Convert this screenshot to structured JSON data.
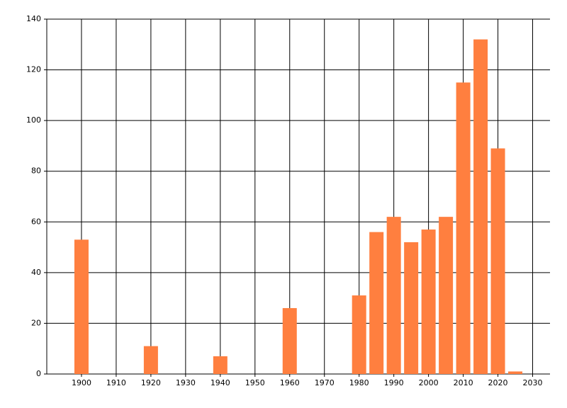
{
  "chart_data": {
    "type": "bar",
    "x": [
      1900,
      1920,
      1940,
      1960,
      1980,
      1985,
      1990,
      1995,
      2000,
      2005,
      2010,
      2015,
      2020,
      2025
    ],
    "values": [
      53,
      11,
      7,
      26,
      31,
      56,
      62,
      52,
      57,
      62,
      115,
      132,
      89,
      1
    ],
    "color": "#ff7f3f",
    "xlim": [
      1890,
      2035
    ],
    "xticks": [
      1900,
      1910,
      1920,
      1930,
      1940,
      1950,
      1960,
      1970,
      1980,
      1990,
      2000,
      2010,
      2020,
      2030
    ],
    "ylim": [
      0,
      140
    ],
    "yticks": [
      0,
      20,
      40,
      60,
      80,
      100,
      120,
      140
    ],
    "grid": true,
    "grid_color": "#000000"
  }
}
